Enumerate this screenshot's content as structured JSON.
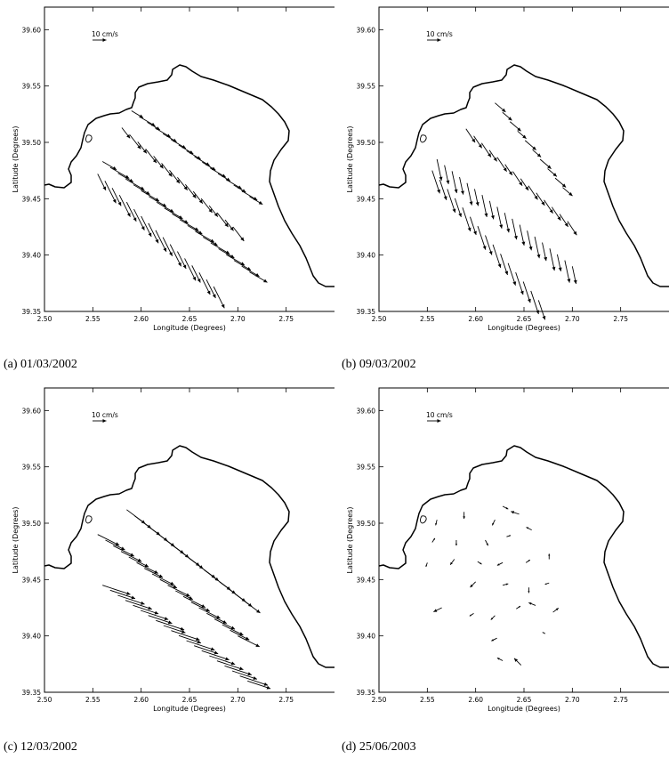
{
  "chart_data": [
    {
      "type": "vector-field",
      "caption": "(a) 01/03/2002",
      "xlabel": "Longitude (Degrees)",
      "ylabel": "Latitude (Degrees)",
      "xlim": [
        2.5,
        2.8
      ],
      "ylim": [
        39.35,
        39.62
      ],
      "x_ticks": [
        "2.50",
        "2.55",
        "2.60",
        "2.65",
        "2.70",
        "2.75"
      ],
      "y_ticks": [
        "39.35",
        "39.40",
        "39.45",
        "39.50",
        "39.55",
        "39.60"
      ],
      "scale_label": "10 cm/s",
      "scale_speed": 10,
      "tracks": [
        {
          "from": [
            2.59,
            39.528
          ],
          "to": [
            2.712,
            39.452
          ],
          "n": 16,
          "u": 10,
          "v": -6
        },
        {
          "from": [
            2.58,
            39.513
          ],
          "to": [
            2.695,
            39.425
          ],
          "n": 15,
          "u": 7,
          "v": -9
        },
        {
          "from": [
            2.56,
            39.483
          ],
          "to": [
            2.712,
            39.385
          ],
          "n": 20,
          "u": 12,
          "v": -7
        },
        {
          "from": [
            2.555,
            39.472
          ],
          "to": [
            2.675,
            39.372
          ],
          "n": 17,
          "u": 7,
          "v": -14
        }
      ]
    },
    {
      "type": "vector-field",
      "caption": "(b) 09/03/2002",
      "xlabel": "Longitude (Degrees)",
      "ylabel": "Latitude (Degrees)",
      "xlim": [
        2.5,
        2.8
      ],
      "ylim": [
        39.35,
        39.62
      ],
      "x_ticks": [
        "2.50",
        "2.55",
        "2.60",
        "2.65",
        "2.70",
        "2.75"
      ],
      "y_ticks": [
        "39.35",
        "39.40",
        "39.45",
        "39.50",
        "39.55",
        "39.60"
      ],
      "scale_label": "10 cm/s",
      "scale_speed": 10,
      "tracks": [
        {
          "from": [
            2.62,
            39.535
          ],
          "to": [
            2.69,
            39.46
          ],
          "n": 10,
          "u": 7,
          "v": -6
        },
        {
          "from": [
            2.59,
            39.512
          ],
          "to": [
            2.695,
            39.43
          ],
          "n": 14,
          "u": 6,
          "v": -9
        },
        {
          "from": [
            2.56,
            39.485
          ],
          "to": [
            2.7,
            39.39
          ],
          "n": 19,
          "u": 3,
          "v": -14
        },
        {
          "from": [
            2.555,
            39.475
          ],
          "to": [
            2.665,
            39.36
          ],
          "n": 15,
          "u": 5,
          "v": -15
        }
      ]
    },
    {
      "type": "vector-field",
      "caption": "(c) 12/03/2002",
      "xlabel": "Longitude (Degrees)",
      "ylabel": "Latitude (Degrees)",
      "xlim": [
        2.5,
        2.8
      ],
      "ylim": [
        39.35,
        39.62
      ],
      "x_ticks": [
        "2.50",
        "2.55",
        "2.60",
        "2.65",
        "2.70",
        "2.75"
      ],
      "y_ticks": [
        "39.35",
        "39.40",
        "39.45",
        "39.50",
        "39.55",
        "39.60"
      ],
      "scale_label": "10 cm/s",
      "scale_speed": 10,
      "tracks": [
        {
          "from": [
            2.585,
            39.512
          ],
          "to": [
            2.705,
            39.432
          ],
          "n": 16,
          "u": 12,
          "v": -9
        },
        {
          "from": [
            2.555,
            39.49
          ],
          "to": [
            2.7,
            39.4
          ],
          "n": 19,
          "u": 14,
          "v": -7
        },
        {
          "from": [
            2.56,
            39.445
          ],
          "to": [
            2.71,
            39.36
          ],
          "n": 20,
          "u": 18,
          "v": -6
        }
      ]
    },
    {
      "type": "vector-field",
      "caption": "(d) 25/06/2003",
      "xlabel": "Longitude (Degrees)",
      "ylabel": "Latitude (Degrees)",
      "xlim": [
        2.5,
        2.8
      ],
      "ylim": [
        39.35,
        39.62
      ],
      "x_ticks": [
        "2.50",
        "2.55",
        "2.60",
        "2.65",
        "2.70",
        "2.75"
      ],
      "y_ticks": [
        "39.35",
        "39.40",
        "39.45",
        "39.50",
        "39.55",
        "39.60"
      ],
      "scale_label": "10 cm/s",
      "scale_speed": 10,
      "vectors": [
        {
          "x": 2.56,
          "y": 39.503,
          "u": -1,
          "v": -4
        },
        {
          "x": 2.588,
          "y": 39.51,
          "u": 0,
          "v": -5
        },
        {
          "x": 2.62,
          "y": 39.503,
          "u": -2,
          "v": -4
        },
        {
          "x": 2.628,
          "y": 39.515,
          "u": 4,
          "v": -2
        },
        {
          "x": 2.645,
          "y": 39.508,
          "u": -6,
          "v": 2
        },
        {
          "x": 2.555,
          "y": 39.483,
          "u": 2,
          "v": 3
        },
        {
          "x": 2.58,
          "y": 39.485,
          "u": 0,
          "v": -4
        },
        {
          "x": 2.61,
          "y": 39.485,
          "u": 2,
          "v": -4
        },
        {
          "x": 2.632,
          "y": 39.488,
          "u": 3,
          "v": 1
        },
        {
          "x": 2.658,
          "y": 39.494,
          "u": -4,
          "v": 2
        },
        {
          "x": 2.55,
          "y": 39.465,
          "u": -1,
          "v": -3
        },
        {
          "x": 2.578,
          "y": 39.468,
          "u": -3,
          "v": -4
        },
        {
          "x": 2.602,
          "y": 39.466,
          "u": 3,
          "v": -2
        },
        {
          "x": 2.628,
          "y": 39.465,
          "u": -4,
          "v": -2
        },
        {
          "x": 2.652,
          "y": 39.465,
          "u": 3,
          "v": 2
        },
        {
          "x": 2.676,
          "y": 39.468,
          "u": 0,
          "v": 4
        },
        {
          "x": 2.6,
          "y": 39.448,
          "u": -4,
          "v": -4
        },
        {
          "x": 2.628,
          "y": 39.445,
          "u": 4,
          "v": 1
        },
        {
          "x": 2.655,
          "y": 39.443,
          "u": 0,
          "v": -4
        },
        {
          "x": 2.676,
          "y": 39.447,
          "u": -3,
          "v": -1
        },
        {
          "x": 2.565,
          "y": 39.425,
          "u": -6,
          "v": -3
        },
        {
          "x": 2.598,
          "y": 39.42,
          "u": -3,
          "v": -2
        },
        {
          "x": 2.62,
          "y": 39.418,
          "u": -3,
          "v": -3
        },
        {
          "x": 2.642,
          "y": 39.424,
          "u": 3,
          "v": 2
        },
        {
          "x": 2.662,
          "y": 39.427,
          "u": -5,
          "v": 2
        },
        {
          "x": 2.68,
          "y": 39.421,
          "u": 4,
          "v": 3
        },
        {
          "x": 2.622,
          "y": 39.398,
          "u": -4,
          "v": -2
        },
        {
          "x": 2.672,
          "y": 39.402,
          "u": -2,
          "v": 1
        },
        {
          "x": 2.628,
          "y": 39.378,
          "u": -4,
          "v": 2
        },
        {
          "x": 2.647,
          "y": 39.374,
          "u": -5,
          "v": 5
        }
      ]
    }
  ]
}
